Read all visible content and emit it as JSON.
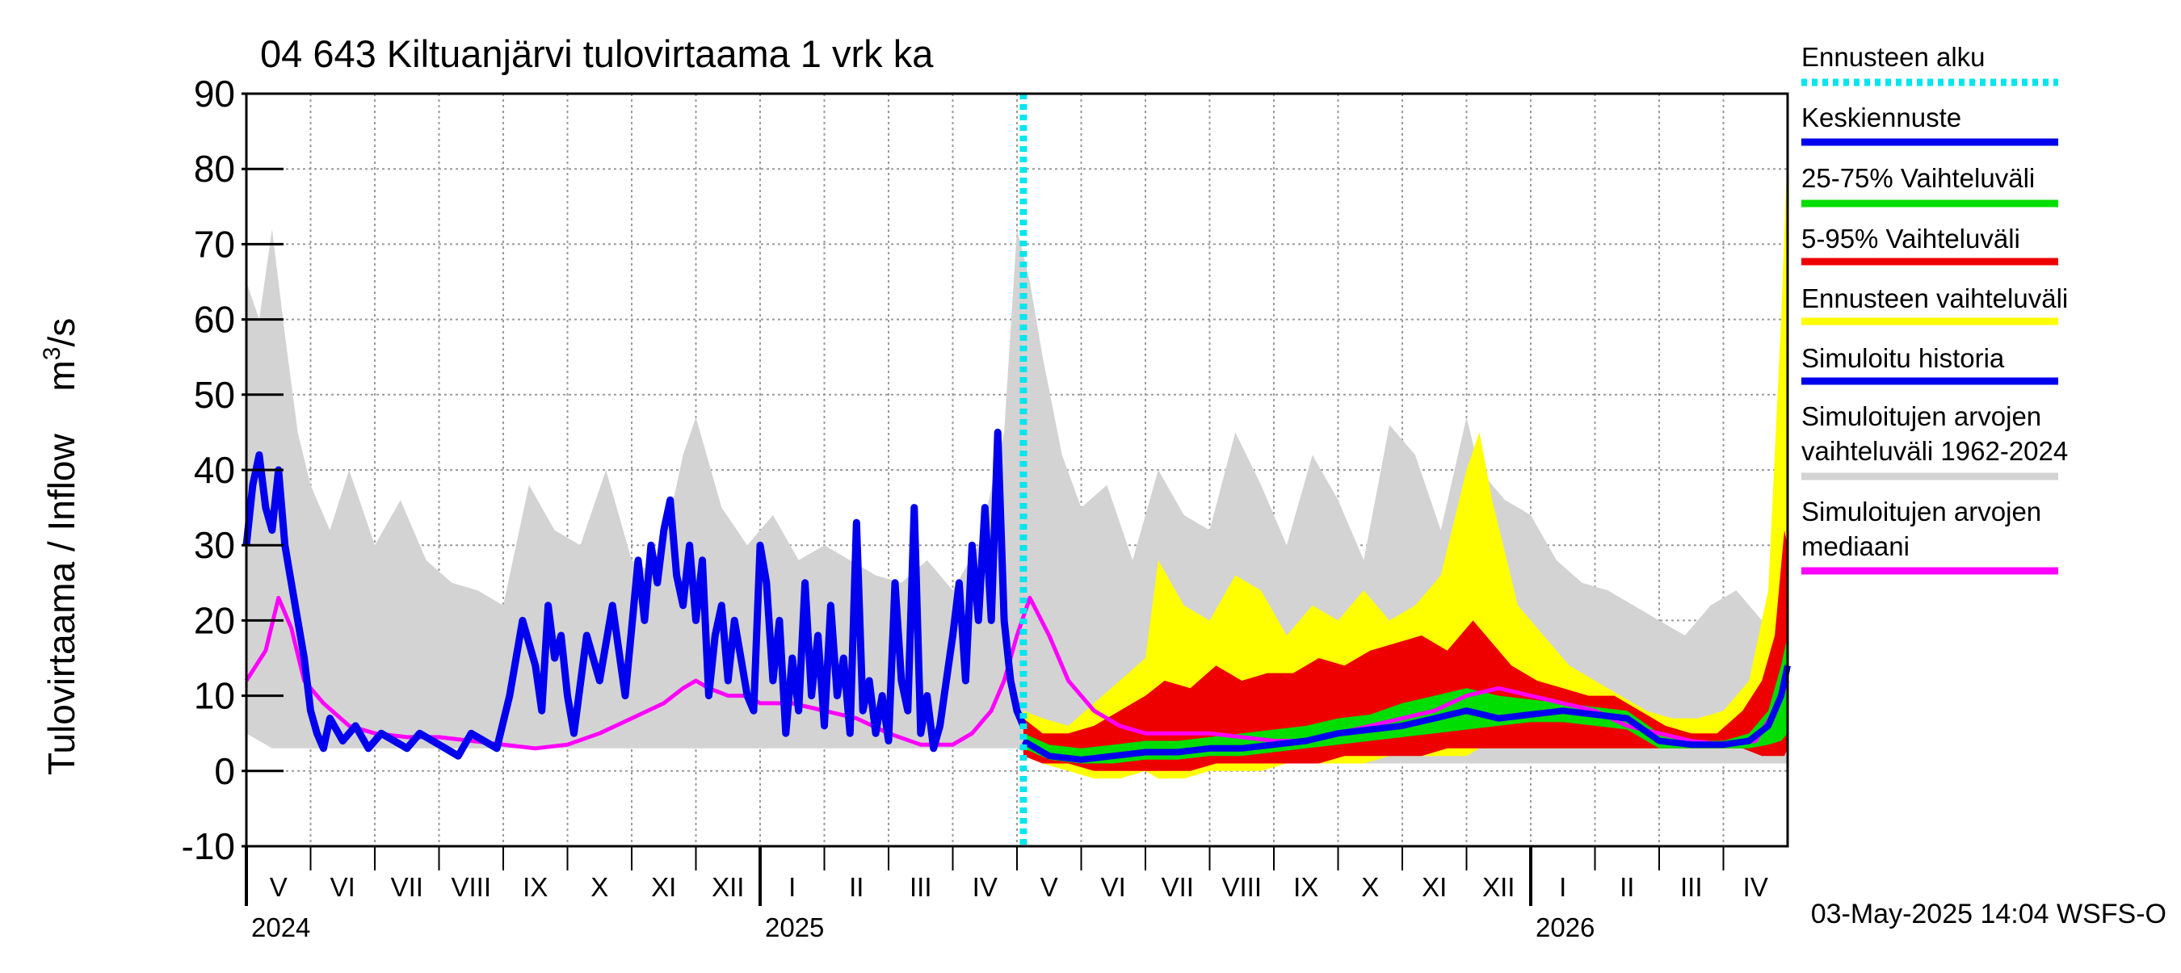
{
  "chart_data": {
    "type": "area",
    "title": "04 643 Kiltuanjärvi tulovirtaama 1 vrk ka",
    "ylabel_main": "Tulovirtaama / Inflow",
    "ylabel_unit_base": "m",
    "ylabel_unit_sup": "3",
    "ylabel_unit_tail": "/s",
    "ylim": [
      -10,
      90
    ],
    "yticks": [
      -10,
      0,
      10,
      20,
      30,
      40,
      50,
      60,
      70,
      80,
      90
    ],
    "x_range_months": [
      0,
      24
    ],
    "x_range_start": "2024-05-01",
    "forecast_start_month": 12.1,
    "months": [
      {
        "label": "V",
        "m": 0
      },
      {
        "label": "VI",
        "m": 1
      },
      {
        "label": "VII",
        "m": 2
      },
      {
        "label": "VIII",
        "m": 3
      },
      {
        "label": "IX",
        "m": 4
      },
      {
        "label": "X",
        "m": 5
      },
      {
        "label": "XI",
        "m": 6
      },
      {
        "label": "XII",
        "m": 7
      },
      {
        "label": "I",
        "m": 8
      },
      {
        "label": "II",
        "m": 9
      },
      {
        "label": "III",
        "m": 10
      },
      {
        "label": "IV",
        "m": 11
      },
      {
        "label": "V",
        "m": 12
      },
      {
        "label": "VI",
        "m": 13
      },
      {
        "label": "VII",
        "m": 14
      },
      {
        "label": "VIII",
        "m": 15
      },
      {
        "label": "IX",
        "m": 16
      },
      {
        "label": "X",
        "m": 17
      },
      {
        "label": "XI",
        "m": 18
      },
      {
        "label": "XII",
        "m": 19
      },
      {
        "label": "I",
        "m": 20
      },
      {
        "label": "II",
        "m": 21
      },
      {
        "label": "III",
        "m": 22
      },
      {
        "label": "IV",
        "m": 23
      }
    ],
    "years": [
      {
        "label": "2024",
        "m": 0
      },
      {
        "label": "2025",
        "m": 8
      },
      {
        "label": "2026",
        "m": 20
      }
    ],
    "legend": [
      {
        "id": "forecast-start",
        "label": "Ennusteen alku",
        "color": "#00e5ee",
        "style": "dotted"
      },
      {
        "id": "mean-forecast",
        "label": "Keskiennuste",
        "color": "#0000ee",
        "style": "solid"
      },
      {
        "id": "range-25-75",
        "label": "25-75% Vaihteluväli",
        "color": "#00dd00",
        "style": "solid"
      },
      {
        "id": "range-5-95",
        "label": "5-95% Vaihteluväli",
        "color": "#ee0000",
        "style": "solid"
      },
      {
        "id": "forecast-range",
        "label": "Ennusteen vaihteluväli",
        "color": "#ffff00",
        "style": "solid"
      },
      {
        "id": "simulated-history",
        "label": "Simuloitu historia",
        "color": "#0000ee",
        "style": "solid"
      },
      {
        "id": "sim-range-line1",
        "label": "Simuloitujen arvojen",
        "label2": "vaihteluväli 1962-2024",
        "color": "#d3d3d3",
        "style": "solid"
      },
      {
        "id": "sim-median-line1",
        "label": "Simuloitujen arvojen",
        "label2": "mediaani",
        "color": "#ff00ff",
        "style": "solid"
      }
    ],
    "series": [
      {
        "name": "Simuloitujen arvojen vaihteluväli 1962-2024",
        "kind": "band",
        "color": "#d3d3d3",
        "x": [
          0,
          0.2,
          0.4,
          0.6,
          0.8,
          1.0,
          1.3,
          1.6,
          2.0,
          2.4,
          2.8,
          3.2,
          3.6,
          4.0,
          4.4,
          4.8,
          5.2,
          5.6,
          6.0,
          6.4,
          6.8,
          7.0,
          7.4,
          7.8,
          8.2,
          8.6,
          9.0,
          9.4,
          9.8,
          10.2,
          10.6,
          11.0,
          11.4,
          11.8,
          12.0,
          12.2,
          12.4,
          12.7,
          13.0,
          13.4,
          13.8,
          14.2,
          14.6,
          15.0,
          15.4,
          15.8,
          16.2,
          16.6,
          17.0,
          17.4,
          17.8,
          18.2,
          18.6,
          19.0,
          19.2,
          19.6,
          20.0,
          20.4,
          20.8,
          21.2,
          21.6,
          22.0,
          22.4,
          22.8,
          23.2,
          23.6,
          23.8,
          24.0
        ],
        "upper": [
          65,
          60,
          72,
          58,
          45,
          38,
          32,
          40,
          30,
          36,
          28,
          25,
          24,
          22,
          38,
          32,
          30,
          40,
          28,
          26,
          42,
          47,
          35,
          30,
          34,
          28,
          30,
          28,
          26,
          25,
          28,
          24,
          30,
          45,
          72,
          65,
          55,
          42,
          35,
          38,
          28,
          40,
          34,
          32,
          45,
          38,
          30,
          42,
          36,
          28,
          46,
          42,
          32,
          47,
          40,
          36,
          34,
          28,
          25,
          24,
          22,
          20,
          18,
          22,
          24,
          20,
          28,
          72
        ],
        "lower": [
          5,
          4,
          3,
          3,
          3,
          3,
          3,
          3,
          3,
          3,
          3,
          3,
          3,
          3,
          3,
          3,
          3,
          3,
          3,
          3,
          3,
          3,
          3,
          3,
          3,
          3,
          3,
          3,
          3,
          3,
          3,
          3,
          3,
          3,
          3,
          2,
          1,
          1,
          1,
          1,
          1,
          1,
          1,
          1,
          1,
          1,
          1,
          1,
          1,
          1,
          1,
          1,
          1,
          1,
          1,
          1,
          1,
          1,
          1,
          1,
          1,
          1,
          1,
          1,
          1,
          1,
          1,
          1
        ]
      },
      {
        "name": "Ennusteen vaihteluväli",
        "kind": "band",
        "color": "#ffff00",
        "x": [
          12.1,
          12.4,
          12.8,
          13.2,
          13.6,
          14.0,
          14.2,
          14.6,
          15.0,
          15.4,
          15.8,
          16.2,
          16.6,
          17.0,
          17.4,
          17.8,
          18.2,
          18.6,
          19.0,
          19.2,
          19.4,
          19.8,
          20.2,
          20.6,
          21.0,
          21.4,
          21.8,
          22.2,
          22.6,
          23.0,
          23.4,
          23.7,
          23.9,
          24.0
        ],
        "upper": [
          8,
          7,
          6,
          9,
          12,
          15,
          28,
          22,
          20,
          26,
          24,
          18,
          22,
          20,
          24,
          20,
          22,
          26,
          40,
          45,
          36,
          22,
          18,
          14,
          12,
          10,
          8,
          7,
          7,
          8,
          12,
          24,
          60,
          83
        ],
        "lower": [
          2,
          1,
          0,
          -1,
          -1,
          0,
          -1,
          -1,
          0,
          0,
          0,
          1,
          1,
          1,
          1,
          2,
          2,
          2,
          2,
          3,
          3,
          3,
          3,
          3,
          3,
          3,
          3,
          3,
          3,
          3,
          3,
          2,
          2,
          3
        ]
      },
      {
        "name": "5-95% Vaihteluväli",
        "kind": "band",
        "color": "#ee0000",
        "x": [
          12.1,
          12.4,
          12.8,
          13.2,
          13.6,
          14.0,
          14.3,
          14.7,
          15.1,
          15.5,
          15.9,
          16.3,
          16.7,
          17.1,
          17.5,
          17.9,
          18.3,
          18.7,
          19.1,
          19.3,
          19.7,
          20.1,
          20.5,
          20.9,
          21.3,
          21.7,
          22.1,
          22.5,
          22.9,
          23.3,
          23.6,
          23.8,
          23.95,
          24.0
        ],
        "upper": [
          7,
          5,
          5,
          6,
          8,
          10,
          12,
          11,
          14,
          12,
          13,
          13,
          15,
          14,
          16,
          17,
          18,
          16,
          20,
          18,
          14,
          12,
          11,
          10,
          10,
          8,
          6,
          5,
          5,
          8,
          12,
          18,
          32,
          30
        ],
        "lower": [
          2,
          1,
          1,
          0,
          0,
          0,
          0,
          0,
          1,
          1,
          1,
          1,
          1,
          2,
          2,
          2,
          2,
          3,
          3,
          3,
          3,
          3,
          3,
          3,
          3,
          3,
          3,
          3,
          3,
          3,
          2,
          2,
          2,
          3
        ]
      },
      {
        "name": "25-75% Vaihteluväli",
        "kind": "band",
        "color": "#00dd00",
        "x": [
          12.1,
          12.5,
          13.0,
          13.5,
          14.0,
          14.5,
          15.0,
          15.5,
          16.0,
          16.5,
          17.0,
          17.5,
          18.0,
          18.5,
          19.0,
          19.5,
          20.0,
          20.5,
          21.0,
          21.5,
          22.0,
          22.5,
          23.0,
          23.4,
          23.7,
          23.9,
          24.0
        ],
        "upper": [
          5,
          3.5,
          3,
          3.5,
          4,
          4,
          4.5,
          5,
          5.5,
          6,
          7,
          7.5,
          9,
          10,
          11,
          10,
          9.5,
          9,
          8.5,
          8,
          5,
          4,
          4,
          5,
          8,
          14,
          18
        ],
        "lower": [
          3,
          1.5,
          1,
          1,
          1.5,
          1.5,
          2,
          2,
          2.5,
          3,
          3.5,
          4,
          4.5,
          5,
          5.5,
          6,
          6.5,
          6.5,
          6,
          5.5,
          3,
          3,
          3,
          3,
          3.5,
          4,
          5
        ]
      },
      {
        "name": "Simuloitujen arvojen mediaani",
        "kind": "line",
        "color": "#ff00ff",
        "x": [
          0,
          0.3,
          0.5,
          0.7,
          0.9,
          1.2,
          1.6,
          2.0,
          2.5,
          3.0,
          3.5,
          4.0,
          4.5,
          5.0,
          5.5,
          6.0,
          6.5,
          6.8,
          7.0,
          7.2,
          7.5,
          7.8,
          8.0,
          8.5,
          9.0,
          9.5,
          10.0,
          10.5,
          11.0,
          11.3,
          11.6,
          11.8,
          12.0,
          12.2,
          12.5,
          12.8,
          13.2,
          13.6,
          14.0,
          14.5,
          15.0,
          15.5,
          16.0,
          16.5,
          17.0,
          17.5,
          18.0,
          18.5,
          19.0,
          19.5,
          20.0,
          20.5,
          21.0,
          21.5,
          22.0,
          22.5,
          23.0,
          23.5,
          23.8,
          24.0
        ],
        "y": [
          12,
          16,
          23,
          19,
          12,
          9,
          6,
          5,
          4.5,
          4.5,
          4,
          3.5,
          3,
          3.5,
          5,
          7,
          9,
          11,
          12,
          11,
          10,
          10,
          9,
          9,
          8,
          7,
          5,
          3.5,
          3.5,
          5,
          8,
          12,
          18,
          23,
          18,
          12,
          8,
          6,
          5,
          5,
          5,
          4.5,
          4,
          4,
          5,
          6,
          7,
          8,
          10,
          11,
          10,
          9,
          8,
          6,
          5,
          4,
          3.5,
          4,
          8,
          12
        ]
      },
      {
        "name": "Simuloitu historia",
        "kind": "line",
        "color": "#0000ee",
        "x": [
          0,
          0.1,
          0.2,
          0.3,
          0.4,
          0.5,
          0.6,
          0.7,
          0.8,
          0.9,
          1.0,
          1.1,
          1.2,
          1.3,
          1.5,
          1.7,
          1.9,
          2.1,
          2.3,
          2.5,
          2.7,
          2.9,
          3.1,
          3.3,
          3.5,
          3.7,
          3.9,
          4.1,
          4.3,
          4.5,
          4.6,
          4.7,
          4.8,
          4.9,
          5.0,
          5.1,
          5.3,
          5.5,
          5.7,
          5.9,
          6.1,
          6.2,
          6.3,
          6.4,
          6.5,
          6.6,
          6.7,
          6.8,
          6.9,
          7.0,
          7.1,
          7.2,
          7.3,
          7.4,
          7.5,
          7.6,
          7.7,
          7.8,
          7.9,
          8.0,
          8.1,
          8.2,
          8.3,
          8.4,
          8.5,
          8.6,
          8.7,
          8.8,
          8.9,
          9.0,
          9.1,
          9.2,
          9.3,
          9.4,
          9.5,
          9.6,
          9.7,
          9.8,
          9.9,
          10.0,
          10.1,
          10.2,
          10.3,
          10.4,
          10.5,
          10.6,
          10.7,
          10.8,
          10.9,
          11.0,
          11.1,
          11.2,
          11.3,
          11.4,
          11.5,
          11.6,
          11.7,
          11.8,
          11.9,
          12.0,
          12.1
        ],
        "y": [
          30,
          38,
          42,
          35,
          32,
          40,
          30,
          25,
          20,
          15,
          8,
          5,
          3,
          7,
          4,
          6,
          3,
          5,
          4,
          3,
          5,
          4,
          3,
          2,
          5,
          4,
          3,
          10,
          20,
          14,
          8,
          22,
          15,
          18,
          10,
          5,
          18,
          12,
          22,
          10,
          28,
          20,
          30,
          25,
          32,
          36,
          26,
          22,
          30,
          20,
          28,
          10,
          18,
          22,
          12,
          20,
          15,
          10,
          8,
          30,
          25,
          12,
          20,
          5,
          15,
          8,
          25,
          10,
          18,
          6,
          22,
          10,
          15,
          5,
          33,
          8,
          12,
          5,
          10,
          4,
          25,
          12,
          8,
          35,
          5,
          10,
          3,
          6,
          12,
          18,
          25,
          12,
          30,
          20,
          35,
          20,
          45,
          20,
          12,
          8,
          6
        ]
      },
      {
        "name": "Keskiennuste",
        "kind": "line",
        "color": "#0000ee",
        "x": [
          12.1,
          12.5,
          13.0,
          13.5,
          14.0,
          14.5,
          15.0,
          15.5,
          16.0,
          16.5,
          17.0,
          17.5,
          18.0,
          18.5,
          19.0,
          19.5,
          20.0,
          20.5,
          21.0,
          21.5,
          22.0,
          22.5,
          23.0,
          23.4,
          23.7,
          23.9,
          24.0
        ],
        "y": [
          4,
          2,
          1.5,
          2,
          2.5,
          2.5,
          3,
          3,
          3.5,
          4,
          5,
          5.5,
          6,
          7,
          8,
          7,
          7.5,
          8,
          7.5,
          7,
          4,
          3.5,
          3.5,
          4,
          6,
          10,
          14
        ]
      }
    ],
    "footer": "03-May-2025 14:04 WSFS-O"
  }
}
